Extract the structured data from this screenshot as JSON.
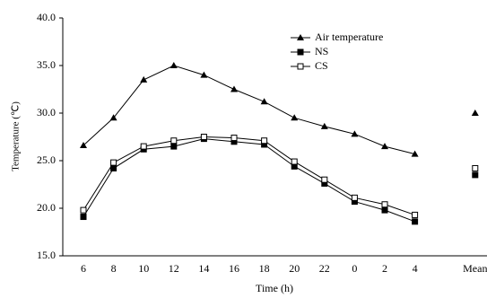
{
  "chart_data": {
    "type": "line",
    "x_label": "Time (h)",
    "y_label": "Temperature (℃)",
    "categories": [
      "6",
      "8",
      "10",
      "12",
      "14",
      "16",
      "18",
      "20",
      "22",
      "0",
      "2",
      "4",
      null,
      "Mean"
    ],
    "ylim": [
      15,
      40
    ],
    "yticks": [
      {
        "value": 15,
        "label": "15.0"
      },
      {
        "value": 20,
        "label": "20.0"
      },
      {
        "value": 25,
        "label": "25.0"
      },
      {
        "value": 30,
        "label": "30.0"
      },
      {
        "value": 35,
        "label": "35.0"
      },
      {
        "value": 40,
        "label": "40.0"
      }
    ],
    "series": [
      {
        "name": "Air temperature",
        "color": "#000000",
        "marker": "triangle",
        "values": [
          26.6,
          29.5,
          33.5,
          35.0,
          34.0,
          32.5,
          31.2,
          29.5,
          28.6,
          27.8,
          26.5,
          25.7,
          null,
          30.0
        ]
      },
      {
        "name": "NS",
        "color": "#000000",
        "marker": "square",
        "values": [
          19.1,
          24.2,
          26.2,
          26.5,
          27.3,
          27.0,
          26.7,
          24.4,
          22.6,
          20.7,
          19.8,
          18.6,
          null,
          23.5
        ]
      },
      {
        "name": "CS",
        "color": "#000000",
        "marker": "open-square",
        "values": [
          19.8,
          24.8,
          26.5,
          27.1,
          27.5,
          27.4,
          27.1,
          24.9,
          23.0,
          21.1,
          20.4,
          19.3,
          null,
          24.2
        ]
      }
    ]
  }
}
